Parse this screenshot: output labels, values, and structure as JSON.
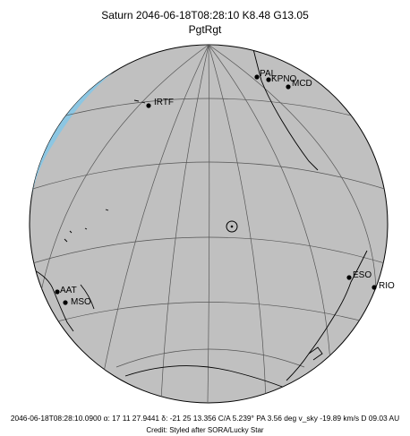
{
  "header": {
    "title": "Saturn 2046-06-18T08:28:10  K8.48  G13.05",
    "subtitle": "PgtRgt"
  },
  "stations": [
    {
      "name": "PAL"
    },
    {
      "name": "KPNO"
    },
    {
      "name": "MCD"
    },
    {
      "name": "IRTF"
    },
    {
      "name": "ESO"
    },
    {
      "name": "RIO"
    },
    {
      "name": "AAT"
    },
    {
      "name": "MSO"
    }
  ],
  "footer": {
    "ephemeris": "2046-06-18T08:28:10.0900 α: 17 11 27.9441 δ: -21 25 13.356  C/A 5.239°  PA   3.56 deg v_sky -19.89 km/s D 09.03 AU",
    "credit": "Credit: Styled after SORA/Lucky Star"
  },
  "colors": {
    "globe_fill": "#c0c0c0",
    "ocean_limb": "#8cc6e2",
    "grid_line": "#555555",
    "coast_line": "#000000"
  }
}
